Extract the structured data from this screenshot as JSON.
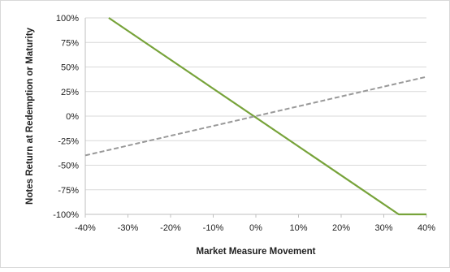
{
  "chart_data": {
    "type": "line",
    "xlabel": "Market Measure Movement",
    "ylabel": "Notes Return at Redemption or Maturity",
    "xlim": [
      -40,
      40
    ],
    "ylim": [
      -100,
      100
    ],
    "x_ticks": [
      "-40%",
      "-30%",
      "-20%",
      "-10%",
      "0%",
      "10%",
      "20%",
      "30%",
      "40%"
    ],
    "x_tick_values": [
      -40,
      -30,
      -20,
      -10,
      0,
      10,
      20,
      30,
      40
    ],
    "y_ticks": [
      "100%",
      "75%",
      "50%",
      "25%",
      "0%",
      "-25%",
      "-50%",
      "-75%",
      "-100%"
    ],
    "y_tick_values": [
      100,
      75,
      50,
      25,
      0,
      -25,
      -50,
      -75,
      -100
    ],
    "grid": "horizontal",
    "series": [
      {
        "style": "solid",
        "color": "#77a33a",
        "x": [
          -34.5,
          33.5,
          40
        ],
        "y": [
          100,
          -100,
          -100
        ]
      },
      {
        "style": "dashed",
        "color": "#999999",
        "x": [
          -40,
          40
        ],
        "y": [
          -40,
          40
        ]
      }
    ]
  }
}
